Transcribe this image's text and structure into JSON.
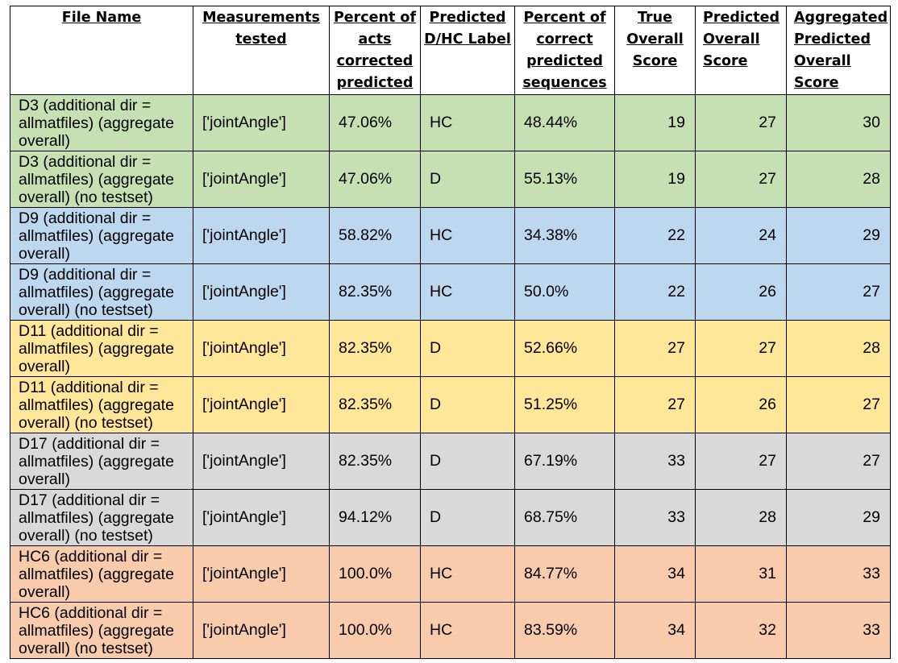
{
  "headers": [
    "File Name",
    "Measurements tested",
    "Percent of acts corrected predicted",
    "Predicted D/HC Label",
    "Percent of correct predicted sequences",
    "True Overall Score",
    "Predicted Overall Score",
    "Aggregated Predicted Overall Score"
  ],
  "rows": [
    {
      "file_name": "D3 (additional dir = allmatfiles) (aggregate overall)",
      "measurements": "['jointAngle']",
      "pct_acts": "47.06%",
      "label": "HC",
      "pct_sequences": "48.44%",
      "true_score": "19",
      "predicted_score": "27",
      "aggregated_score": "30",
      "color": "#c6e0b4"
    },
    {
      "file_name": "D3 (additional dir = allmatfiles) (aggregate overall) (no testset)",
      "measurements": "['jointAngle']",
      "pct_acts": "47.06%",
      "label": "D",
      "pct_sequences": "55.13%",
      "true_score": "19",
      "predicted_score": "27",
      "aggregated_score": "28",
      "color": "#c6e0b4"
    },
    {
      "file_name": "D9 (additional dir = allmatfiles) (aggregate overall)",
      "measurements": "['jointAngle']",
      "pct_acts": "58.82%",
      "label": "HC",
      "pct_sequences": "34.38%",
      "true_score": "22",
      "predicted_score": "24",
      "aggregated_score": "29",
      "color": "#bdd7ee"
    },
    {
      "file_name": "D9 (additional dir = allmatfiles) (aggregate overall) (no testset)",
      "measurements": "['jointAngle']",
      "pct_acts": "82.35%",
      "label": "HC",
      "pct_sequences": "50.0%",
      "true_score": "22",
      "predicted_score": "26",
      "aggregated_score": "27",
      "color": "#bdd7ee"
    },
    {
      "file_name": "D11 (additional dir = allmatfiles) (aggregate overall)",
      "measurements": "['jointAngle']",
      "pct_acts": "82.35%",
      "label": "D",
      "pct_sequences": "52.66%",
      "true_score": "27",
      "predicted_score": "27",
      "aggregated_score": "28",
      "color": "#ffe699"
    },
    {
      "file_name": "D11 (additional dir = allmatfiles) (aggregate overall) (no testset)",
      "measurements": "['jointAngle']",
      "pct_acts": "82.35%",
      "label": "D",
      "pct_sequences": "51.25%",
      "true_score": "27",
      "predicted_score": "26",
      "aggregated_score": "27",
      "color": "#ffe699"
    },
    {
      "file_name": "D17 (additional dir = allmatfiles) (aggregate overall)",
      "measurements": "['jointAngle']",
      "pct_acts": "82.35%",
      "label": "D",
      "pct_sequences": "67.19%",
      "true_score": "33",
      "predicted_score": "27",
      "aggregated_score": "27",
      "color": "#d9d9d9"
    },
    {
      "file_name": "D17 (additional dir = allmatfiles) (aggregate overall) (no testset)",
      "measurements": "['jointAngle']",
      "pct_acts": "94.12%",
      "label": "D",
      "pct_sequences": "68.75%",
      "true_score": "33",
      "predicted_score": "28",
      "aggregated_score": "29",
      "color": "#d9d9d9"
    },
    {
      "file_name": "HC6 (additional dir = allmatfiles) (aggregate overall)",
      "measurements": "['jointAngle']",
      "pct_acts": "100.0%",
      "label": "HC",
      "pct_sequences": "84.77%",
      "true_score": "34",
      "predicted_score": "31",
      "aggregated_score": "33",
      "color": "#f8cbad"
    },
    {
      "file_name": "HC6 (additional dir = allmatfiles) (aggregate overall) (no testset)",
      "measurements": "['jointAngle']",
      "pct_acts": "100.0%",
      "label": "HC",
      "pct_sequences": "83.59%",
      "true_score": "34",
      "predicted_score": "32",
      "aggregated_score": "33",
      "color": "#f8cbad"
    }
  ]
}
